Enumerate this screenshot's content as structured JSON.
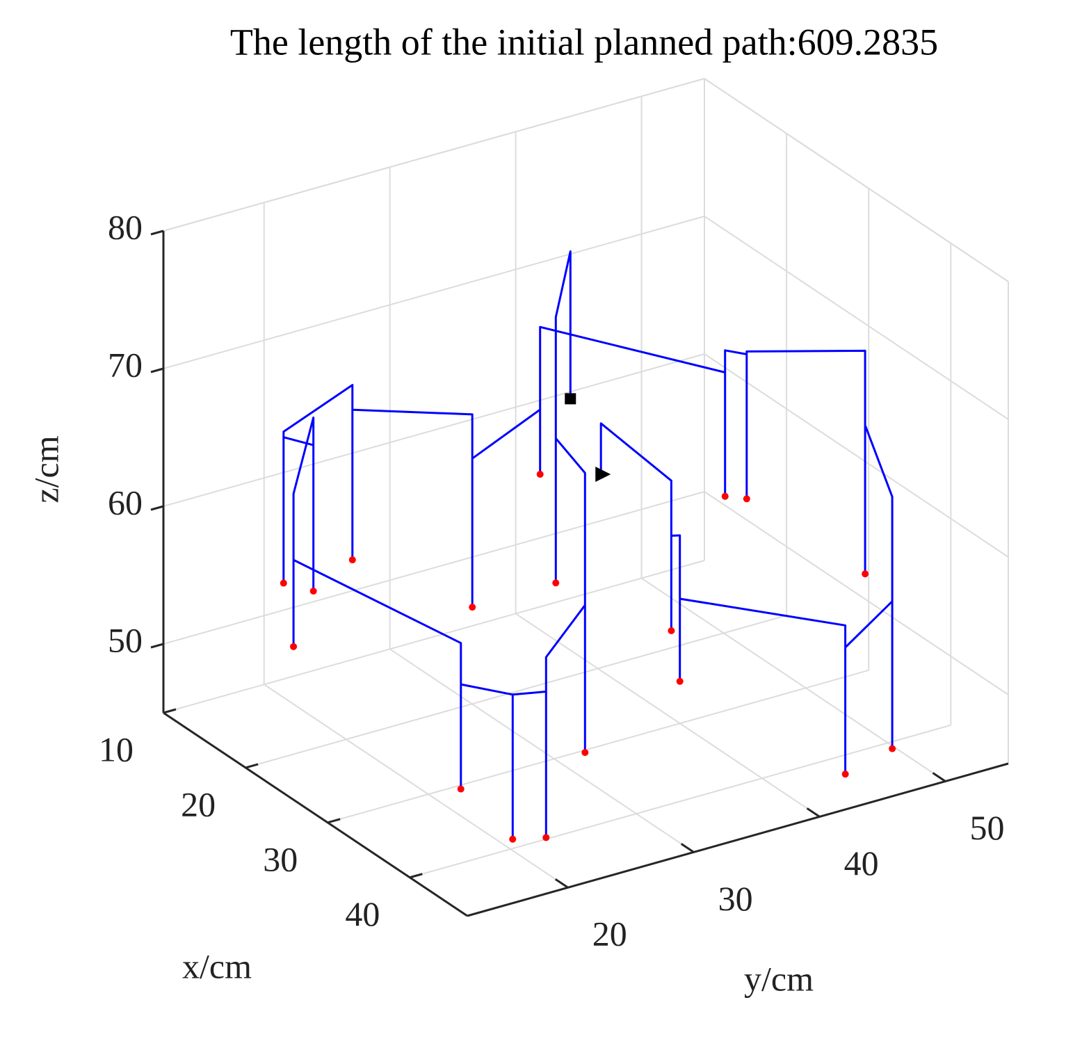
{
  "chart_data": {
    "type": "line3d",
    "title": "The length of the initial planned path:609.2835",
    "xlabel": "x/cm",
    "ylabel": "y/cm",
    "zlabel": "z/cm",
    "xlim": [
      10,
      47
    ],
    "ylim": [
      12,
      55
    ],
    "zlim": [
      45,
      80
    ],
    "xticks": [
      10,
      20,
      30,
      40
    ],
    "yticks": [
      20,
      30,
      40,
      50
    ],
    "zticks": [
      50,
      60,
      70,
      80
    ],
    "grid": true,
    "start_marker": "square",
    "end_marker": "triangle",
    "series": [
      {
        "type": "line",
        "color": "#0000ff",
        "x": [
          16.2,
          16.2,
          18.1,
          18.1,
          18.1,
          35.6,
          35.6,
          35.6,
          45.1,
          45.1,
          45.1,
          44.1,
          44.1,
          44.1,
          35.8,
          35.8,
          35.8,
          16.8,
          16.8,
          16.8,
          15.7,
          15.7,
          15.7,
          13.6,
          13.6,
          13.6,
          13.1,
          13.1,
          13.1,
          18.2,
          18.2,
          18.2,
          14.2,
          14.2,
          14.2,
          23.7,
          23.7,
          23.7,
          24.8,
          24.8,
          24.8,
          33.4,
          33.4,
          33.4,
          46.2,
          46.2,
          46.2,
          46.0,
          46.0,
          46.0,
          35.2,
          35.2,
          35.2,
          33.7,
          33.7,
          33.7,
          16.4,
          16.4
        ],
        "y": [
          40.3,
          40.3,
          37.9,
          37.9,
          37.9,
          28.8,
          28.8,
          28.8,
          19.5,
          19.5,
          19.5,
          17.5,
          17.5,
          17.5,
          18.8,
          18.8,
          18.8,
          17.9,
          17.9,
          17.9,
          20.2,
          20.2,
          20.2,
          19.2,
          19.2,
          19.2,
          25.0,
          25.0,
          25.0,
          31.2,
          31.2,
          31.2,
          39.2,
          39.2,
          39.2,
          47.7,
          47.7,
          47.7,
          48.7,
          48.7,
          48.7,
          52.5,
          52.5,
          52.5,
          46.3,
          46.3,
          46.3,
          42.7,
          42.7,
          42.7,
          36.6,
          36.6,
          36.6,
          36.9,
          36.9,
          36.9,
          42.6,
          42.6
        ],
        "z": [
          63,
          73.7,
          70.3,
          51,
          61.5,
          68.3,
          48,
          58.7,
          61.1,
          48,
          58.6,
          58.5,
          48,
          58.5,
          55.6,
          48,
          58.6,
          57.3,
          51,
          62.1,
          66.6,
          54,
          64.6,
          64.6,
          54,
          65,
          66.7,
          54,
          64.9,
          65,
          51,
          61.8,
          61.7,
          57,
          67.7,
          66,
          57,
          67.6,
          67.5,
          57,
          67.7,
          70.2,
          54,
          64.8,
          66.3,
          48,
          58.7,
          56.2,
          47,
          57.8,
          57,
          51,
          61.6,
          60.9,
          54,
          64.9,
          60.7,
          57
        ]
      },
      {
        "type": "scatter",
        "color": "#ff0000",
        "x": [
          18.1,
          35.6,
          45.1,
          44.1,
          35.8,
          16.8,
          15.7,
          13.6,
          13.1,
          18.2,
          14.2,
          23.7,
          24.8,
          33.4,
          46.2,
          46.0,
          35.2,
          33.7
        ],
        "y": [
          37.9,
          28.8,
          19.5,
          17.5,
          18.8,
          17.9,
          20.2,
          19.2,
          25.0,
          31.2,
          39.2,
          47.7,
          48.7,
          52.5,
          46.3,
          42.7,
          36.6,
          36.9
        ],
        "z": [
          51,
          48,
          48,
          48,
          48,
          51,
          54,
          54,
          54,
          51,
          57,
          57,
          57,
          54,
          48,
          47,
          51,
          54
        ]
      }
    ]
  }
}
